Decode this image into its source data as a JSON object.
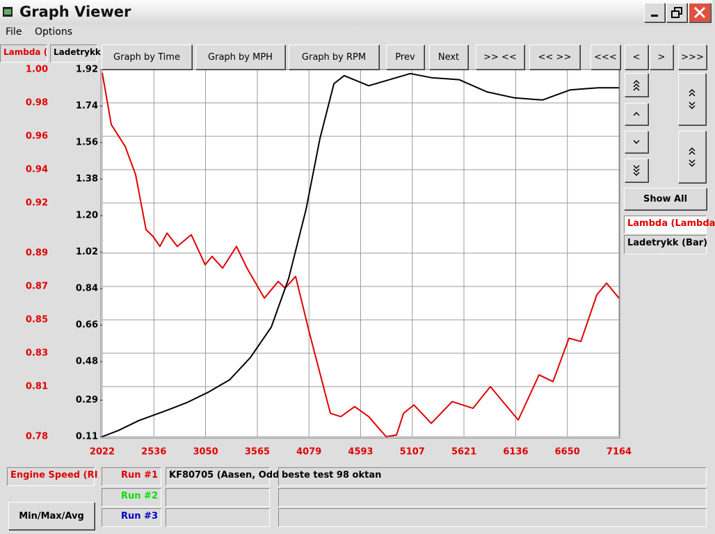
{
  "window": {
    "title": "Graph Viewer"
  },
  "menu": [
    "File",
    "Options"
  ],
  "tabs": [
    "Lambda (",
    "Ladetrykk"
  ],
  "toolbar": [
    "Graph by Time",
    "Graph by MPH",
    "Graph by RPM",
    "Prev",
    "Next",
    ">> <<",
    "<< >>",
    "<<<",
    "<",
    ">",
    ">>>"
  ],
  "side": {
    "show_all": "Show All"
  },
  "runs": [
    {
      "label": "Run #1",
      "color": "#e00000",
      "file": "KF80705 (Aasen, Odd",
      "note": "beste test 98 oktan"
    },
    {
      "label": "Run #2",
      "color": "#00e000"
    },
    {
      "label": "Run #3",
      "color": "#0000c0"
    }
  ],
  "stats_button": "Min/Max/Avg",
  "chart_data": {
    "type": "line",
    "xlabel": "Engine Speed (RI",
    "grid": true,
    "xlim": [
      2022,
      7164
    ],
    "xticks": [
      2022,
      2536,
      3050,
      3565,
      4079,
      4593,
      5107,
      5621,
      6136,
      6650,
      7164
    ],
    "ylim": [
      0.78,
      1.0
    ],
    "yticks": [
      0.78,
      0.81,
      0.83,
      0.85,
      0.87,
      0.89,
      0.92,
      0.94,
      0.96,
      0.98,
      {
        "value": 1.0,
        "label": "1.00"
      }
    ],
    "y2lim": [
      0.11,
      1.92
    ],
    "y2ticks": [
      0.11,
      0.29,
      0.48,
      0.66,
      0.84,
      1.02,
      {
        "value": 1.2,
        "label": "1.20"
      },
      1.38,
      1.56,
      1.74,
      1.92
    ],
    "series": [
      {
        "name": "Lambda (Lambda",
        "color": "#e00000",
        "x": [
          2022,
          2112,
          2250,
          2354,
          2458,
          2527,
          2596,
          2666,
          2769,
          2908,
          3046,
          3115,
          3219,
          3358,
          3462,
          3635,
          3773,
          3842,
          3946,
          4084,
          4292,
          4396,
          4534,
          4673,
          4846,
          4950,
          5020,
          5123,
          5296,
          5504,
          5711,
          5884,
          6022,
          6161,
          6368,
          6507,
          6666,
          6784,
          6943,
          7040,
          7164
        ],
        "values": [
          0.998,
          0.967,
          0.954,
          0.937,
          0.904,
          0.9,
          0.894,
          0.902,
          0.894,
          0.901,
          0.883,
          0.888,
          0.881,
          0.894,
          0.881,
          0.863,
          0.873,
          0.869,
          0.876,
          0.842,
          0.794,
          0.792,
          0.798,
          0.792,
          0.78,
          0.781,
          0.794,
          0.799,
          0.788,
          0.801,
          0.797,
          0.81,
          0.8,
          0.79,
          0.817,
          0.813,
          0.839,
          0.837,
          0.865,
          0.872,
          0.863
        ]
      },
      {
        "name": "Ladetrykk (Bar)",
        "color": "#000000",
        "axis": "y2",
        "x": [
          2022,
          2181,
          2389,
          2666,
          2873,
          3081,
          3289,
          3496,
          3704,
          3877,
          4050,
          4188,
          4327,
          4430,
          4673,
          4880,
          5088,
          5296,
          5573,
          5849,
          6126,
          6403,
          6680,
          6957,
          7164
        ],
        "values": [
          0.11,
          0.14,
          0.19,
          0.24,
          0.28,
          0.33,
          0.39,
          0.5,
          0.65,
          0.89,
          1.23,
          1.58,
          1.85,
          1.89,
          1.84,
          1.87,
          1.9,
          1.88,
          1.87,
          1.81,
          1.78,
          1.77,
          1.82,
          1.83,
          1.83
        ]
      }
    ]
  }
}
